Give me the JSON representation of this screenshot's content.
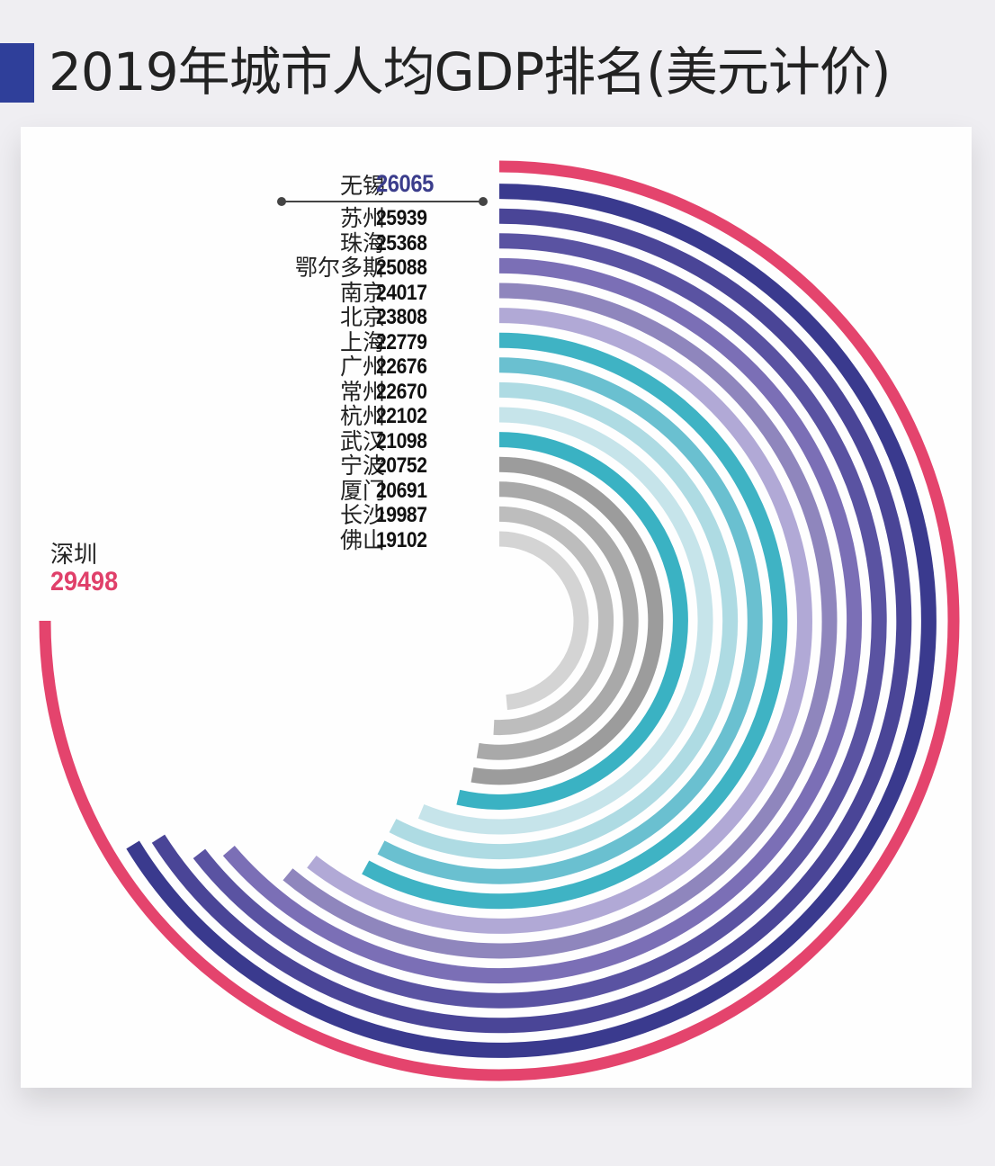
{
  "title": "2019年城市人均GDP排名(美元计价)",
  "chart_data": {
    "type": "radial-bar",
    "title": "2019年城市人均GDP排名(美元计价)",
    "unit": "美元",
    "categories": [
      "深圳",
      "无锡",
      "苏州",
      "珠海",
      "鄂尔多斯",
      "南京",
      "北京",
      "上海",
      "广州",
      "常州",
      "杭州",
      "武汉",
      "宁波",
      "厦门",
      "长沙",
      "佛山"
    ],
    "values": [
      29498,
      26065,
      25939,
      25368,
      25088,
      24017,
      23808,
      22779,
      22676,
      22670,
      22102,
      21098,
      20752,
      20691,
      19987,
      19102
    ],
    "colors": [
      "#e4446d",
      "#3a3a8e",
      "#4a4597",
      "#5a53a2",
      "#7b6fb6",
      "#8f86bd",
      "#b1a9d6",
      "#3fb3c4",
      "#6ac0d0",
      "#aedbe3",
      "#c6e4ea",
      "#3ab2c3",
      "#9c9c9c",
      "#a9a9a9",
      "#bdbdbd",
      "#d4d4d4"
    ],
    "highlight": {
      "city": "深圳",
      "value": 29498
    }
  },
  "labels": {
    "top": {
      "city": "无锡",
      "value": "26065"
    },
    "rows": [
      {
        "city": "苏州",
        "value": "25939"
      },
      {
        "city": "珠海",
        "value": "25368"
      },
      {
        "city": "鄂尔多斯",
        "value": "25088"
      },
      {
        "city": "南京",
        "value": "24017"
      },
      {
        "city": "北京",
        "value": "23808"
      },
      {
        "city": "上海",
        "value": "22779"
      },
      {
        "city": "广州",
        "value": "22676"
      },
      {
        "city": "常州",
        "value": "22670"
      },
      {
        "city": "杭州",
        "value": "22102"
      },
      {
        "city": "武汉",
        "value": "21098"
      },
      {
        "city": "宁波",
        "value": "20752"
      },
      {
        "city": "厦门",
        "value": "20691"
      },
      {
        "city": "长沙",
        "value": "19987"
      },
      {
        "city": "佛山",
        "value": "19102"
      }
    ],
    "shenzhen": {
      "city": "深圳",
      "value": "29498"
    }
  }
}
